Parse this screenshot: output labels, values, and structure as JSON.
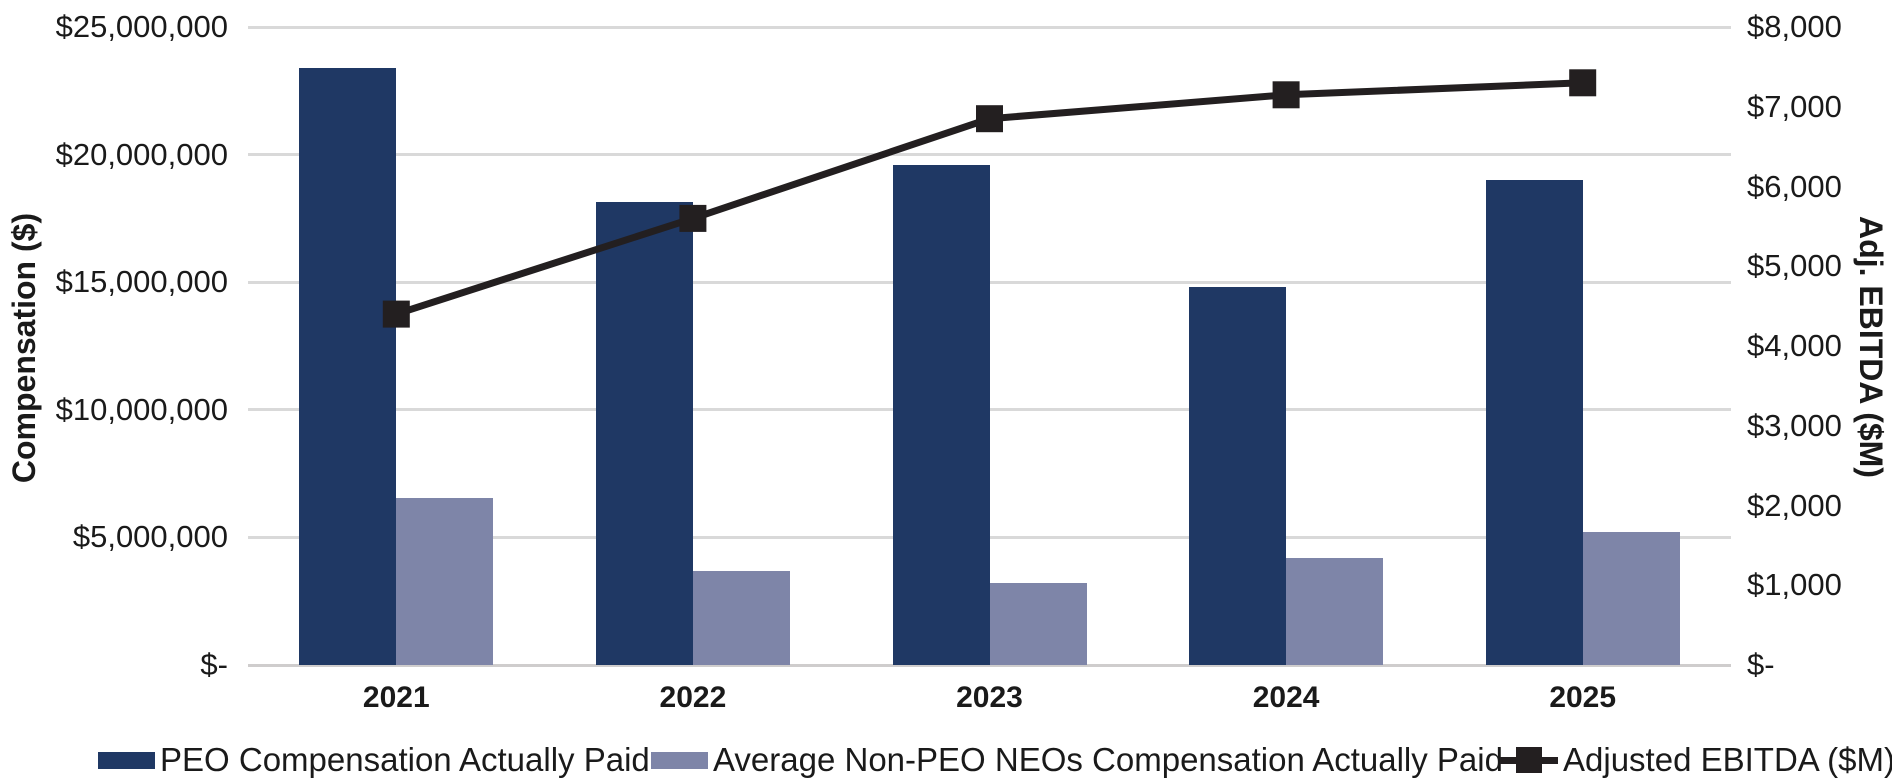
{
  "chart_data": {
    "type": "combo-bar-line",
    "title": "",
    "categories": [
      "2021",
      "2022",
      "2023",
      "2024",
      "2025"
    ],
    "series": [
      {
        "name": "PEO Compensation Actually Paid",
        "type": "bar",
        "axis": "left",
        "color": "#1F3864",
        "values": [
          23400000,
          18150000,
          19600000,
          14800000,
          19000000
        ]
      },
      {
        "name": "Average Non-PEO NEOs Compensation Actually Paid",
        "type": "bar",
        "axis": "left",
        "color": "#7E85A8",
        "values": [
          6550000,
          3700000,
          3200000,
          4200000,
          5200000
        ]
      },
      {
        "name": "Adjusted EBITDA ($M)",
        "type": "line",
        "axis": "right",
        "color": "#231F20",
        "values": [
          4400,
          5600,
          6850,
          7150,
          7300
        ]
      }
    ],
    "xlabel": "",
    "ylabel_left": "Compensation ($)",
    "ylabel_right": "Adj. EBITDA ($M)",
    "left_axis": {
      "min": 0,
      "max": 25000000,
      "tick_step": 5000000,
      "tick_labels_bottom_to_top": [
        "$-",
        "$5,000,000",
        "$10,000,000",
        "$15,000,000",
        "$20,000,000",
        "$25,000,000"
      ]
    },
    "right_axis": {
      "min": 0,
      "max": 8000,
      "tick_step": 1000,
      "tick_labels_bottom_to_top": [
        "$-",
        "$1,000",
        "$2,000",
        "$3,000",
        "$4,000",
        "$5,000",
        "$6,000",
        "$7,000",
        "$8,000"
      ]
    },
    "grid": "horizontal gridlines at left-axis ticks",
    "legend_position": "bottom"
  }
}
